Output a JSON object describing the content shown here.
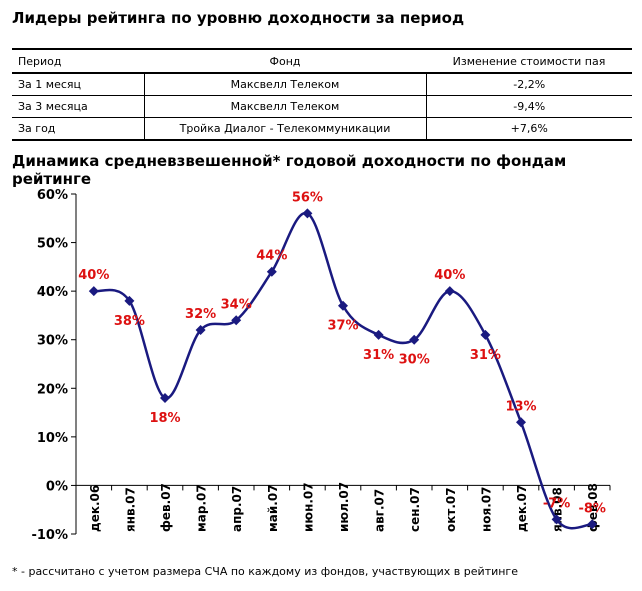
{
  "leaders": {
    "title": "Лидеры рейтинга по уровню доходности за период",
    "columns": [
      "Период",
      "Фонд",
      "Изменение стоимости пая"
    ],
    "rows": [
      {
        "period": "За 1 месяц",
        "fund": "Максвелл Телеком",
        "change": "-2,2%"
      },
      {
        "period": "За 3 месяца",
        "fund": "Максвелл Телеком",
        "change": "-9,4%"
      },
      {
        "period": "За год",
        "fund": "Тройка Диалог - Телекоммуникации",
        "change": "+7,6%"
      }
    ]
  },
  "chart_data": {
    "type": "line",
    "title": "Динамика средневзвешенной* годовой доходности по фондам рейтинге",
    "categories": [
      "дек.06",
      "янв.07",
      "фев.07",
      "мар.07",
      "апр.07",
      "май.07",
      "июн.07",
      "июл.07",
      "авг.07",
      "сен.07",
      "окт.07",
      "ноя.07",
      "дек.07",
      "янв.08",
      "фев.08"
    ],
    "series": [
      {
        "values": [
          40,
          38,
          18,
          32,
          34,
          44,
          56,
          37,
          31,
          30,
          40,
          31,
          13,
          -7,
          -8
        ],
        "labels": [
          "40%",
          "38%",
          "18%",
          "32%",
          "34%",
          "44%",
          "56%",
          "37%",
          "31%",
          "30%",
          "40%",
          "31%",
          "13%",
          "-7%",
          "-8%"
        ]
      }
    ],
    "ylim": [
      -10,
      60
    ],
    "yticks": [
      -10,
      0,
      10,
      20,
      30,
      40,
      50,
      60
    ],
    "ytick_labels": [
      "-10%",
      "0%",
      "10%",
      "20%",
      "30%",
      "40%",
      "50%",
      "60%"
    ],
    "grid": false,
    "line_color": "#1a1a80",
    "label_color": "#dd1111"
  },
  "footnote": "* - рассчитано с учетом размера СЧА по каждому из фондов, участвующих в рейтинге"
}
